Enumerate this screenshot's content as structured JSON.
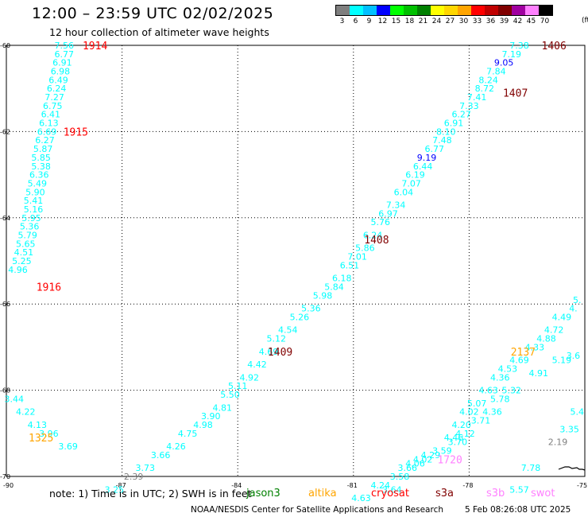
{
  "title": "12:00 – 23:59 UTC 02/02/2025",
  "subtitle": "12 hour collection of altimeter wave heights",
  "legend": {
    "unit": "(ft)",
    "bins": [
      {
        "label": "3",
        "color": "#7f7f7f"
      },
      {
        "label": "6",
        "color": "#00ffff"
      },
      {
        "label": "9",
        "color": "#00c0ff"
      },
      {
        "label": "12",
        "color": "#0000ff"
      },
      {
        "label": "15",
        "color": "#00ff00"
      },
      {
        "label": "18",
        "color": "#00c000"
      },
      {
        "label": "21",
        "color": "#008000"
      },
      {
        "label": "24",
        "color": "#ffff00"
      },
      {
        "label": "27",
        "color": "#ffd700"
      },
      {
        "label": "30",
        "color": "#ffa500"
      },
      {
        "label": "33",
        "color": "#ff0000"
      },
      {
        "label": "36",
        "color": "#c00000"
      },
      {
        "label": "39",
        "color": "#800000"
      },
      {
        "label": "42",
        "color": "#a000a0"
      },
      {
        "label": "45",
        "color": "#ff80ff"
      },
      {
        "label": "70",
        "color": "#000000"
      }
    ]
  },
  "axes": {
    "lon_ticks": [
      "-90",
      "-87",
      "-84",
      "-81",
      "-78",
      "-75"
    ],
    "lat_ticks": [
      "-60",
      "-62",
      "-64",
      "-66",
      "-68",
      "-70"
    ]
  },
  "note": "note: 1) Time is in UTC; 2) SWH is in feet",
  "satellites": [
    {
      "name": "jason3",
      "color": "#008000"
    },
    {
      "name": "altika",
      "color": "#ffa500"
    },
    {
      "name": "cryosat",
      "color": "#ff0000"
    },
    {
      "name": "s3a",
      "color": "#800000"
    },
    {
      "name": "s3b",
      "color": "#ff80ff"
    },
    {
      "name": "swot",
      "color": "#ff80ff"
    }
  ],
  "credit": "NOAA/NESDIS Center for Satellite Applications and Research",
  "timestamp": "5 Feb 08:26:08 UTC 2025",
  "track_labels": [
    {
      "text": "1914",
      "lon": -87.7,
      "lat": -60.0,
      "color": "#ff0000"
    },
    {
      "text": "1915",
      "lon": -88.2,
      "lat": -62.0,
      "color": "#ff0000"
    },
    {
      "text": "1916",
      "lon": -88.9,
      "lat": -65.6,
      "color": "#ff0000"
    },
    {
      "text": "1325",
      "lon": -89.1,
      "lat": -69.1,
      "color": "#ffa500"
    },
    {
      "text": "1406",
      "lon": -75.8,
      "lat": -60.0,
      "color": "#800000"
    },
    {
      "text": "1407",
      "lon": -76.8,
      "lat": -61.1,
      "color": "#800000"
    },
    {
      "text": "1408",
      "lon": -80.4,
      "lat": -64.5,
      "color": "#800000"
    },
    {
      "text": "1409",
      "lon": -82.9,
      "lat": -67.1,
      "color": "#800000"
    },
    {
      "text": "2137",
      "lon": -76.6,
      "lat": -67.1,
      "color": "#ffa500"
    },
    {
      "text": "1720",
      "lon": -78.5,
      "lat": -69.6,
      "color": "#ff80ff"
    }
  ],
  "wave_heights": [
    {
      "v": "7.56",
      "lon": -88.5,
      "lat": -60.0,
      "c": "#00ffff"
    },
    {
      "v": "6.77",
      "lon": -88.5,
      "lat": -60.2,
      "c": "#00ffff"
    },
    {
      "v": "6.91",
      "lon": -88.55,
      "lat": -60.4,
      "c": "#00ffff"
    },
    {
      "v": "6.98",
      "lon": -88.6,
      "lat": -60.6,
      "c": "#00ffff"
    },
    {
      "v": "6.49",
      "lon": -88.65,
      "lat": -60.8,
      "c": "#00ffff"
    },
    {
      "v": "6.24",
      "lon": -88.7,
      "lat": -61.0,
      "c": "#00ffff"
    },
    {
      "v": "7.27",
      "lon": -88.75,
      "lat": -61.2,
      "c": "#00ffff"
    },
    {
      "v": "6.75",
      "lon": -88.8,
      "lat": -61.4,
      "c": "#00ffff"
    },
    {
      "v": "6.41",
      "lon": -88.85,
      "lat": -61.6,
      "c": "#00ffff"
    },
    {
      "v": "6.13",
      "lon": -88.9,
      "lat": -61.8,
      "c": "#00ffff"
    },
    {
      "v": "6.69",
      "lon": -88.95,
      "lat": -62.0,
      "c": "#00ffff"
    },
    {
      "v": "6.27",
      "lon": -89.0,
      "lat": -62.2,
      "c": "#00ffff"
    },
    {
      "v": "5.87",
      "lon": -89.05,
      "lat": -62.4,
      "c": "#00ffff"
    },
    {
      "v": "5.85",
      "lon": -89.1,
      "lat": -62.6,
      "c": "#00ffff"
    },
    {
      "v": "5.38",
      "lon": -89.1,
      "lat": -62.8,
      "c": "#00ffff"
    },
    {
      "v": "6.36",
      "lon": -89.15,
      "lat": -63.0,
      "c": "#00ffff"
    },
    {
      "v": "5.49",
      "lon": -89.2,
      "lat": -63.2,
      "c": "#00ffff"
    },
    {
      "v": "5.90",
      "lon": -89.25,
      "lat": -63.4,
      "c": "#00ffff"
    },
    {
      "v": "5.41",
      "lon": -89.3,
      "lat": -63.6,
      "c": "#00ffff"
    },
    {
      "v": "5.16",
      "lon": -89.3,
      "lat": -63.8,
      "c": "#00ffff"
    },
    {
      "v": "5.95",
      "lon": -89.35,
      "lat": -64.0,
      "c": "#00ffff"
    },
    {
      "v": "5.36",
      "lon": -89.4,
      "lat": -64.2,
      "c": "#00ffff"
    },
    {
      "v": "5.79",
      "lon": -89.45,
      "lat": -64.4,
      "c": "#00ffff"
    },
    {
      "v": "5.65",
      "lon": -89.5,
      "lat": -64.6,
      "c": "#00ffff"
    },
    {
      "v": "4.51",
      "lon": -89.55,
      "lat": -64.8,
      "c": "#00ffff"
    },
    {
      "v": "5.25",
      "lon": -89.6,
      "lat": -65.0,
      "c": "#00ffff"
    },
    {
      "v": "4.96",
      "lon": -89.7,
      "lat": -65.2,
      "c": "#00ffff"
    },
    {
      "v": "3.44",
      "lon": -89.8,
      "lat": -68.2,
      "c": "#00ffff"
    },
    {
      "v": "4.22",
      "lon": -89.5,
      "lat": -68.5,
      "c": "#00ffff"
    },
    {
      "v": "4.13",
      "lon": -89.2,
      "lat": -68.8,
      "c": "#00ffff"
    },
    {
      "v": "3.96",
      "lon": -88.9,
      "lat": -69.0,
      "c": "#00ffff"
    },
    {
      "v": "3.69",
      "lon": -88.4,
      "lat": -69.3,
      "c": "#00ffff"
    },
    {
      "v": "7.38",
      "lon": -76.7,
      "lat": -60.0,
      "c": "#00ffff"
    },
    {
      "v": "7.19",
      "lon": -76.9,
      "lat": -60.2,
      "c": "#00ffff"
    },
    {
      "v": "9.05",
      "lon": -77.1,
      "lat": -60.4,
      "c": "#0000ff"
    },
    {
      "v": "7.84",
      "lon": -77.3,
      "lat": -60.6,
      "c": "#00ffff"
    },
    {
      "v": "8.24",
      "lon": -77.5,
      "lat": -60.8,
      "c": "#00ffff"
    },
    {
      "v": "8.72",
      "lon": -77.6,
      "lat": -61.0,
      "c": "#00ffff"
    },
    {
      "v": "7.41",
      "lon": -77.8,
      "lat": -61.2,
      "c": "#00ffff"
    },
    {
      "v": "7.33",
      "lon": -78.0,
      "lat": -61.4,
      "c": "#00ffff"
    },
    {
      "v": "6.27",
      "lon": -78.2,
      "lat": -61.6,
      "c": "#00ffff"
    },
    {
      "v": "6.91",
      "lon": -78.4,
      "lat": -61.8,
      "c": "#00ffff"
    },
    {
      "v": "8.10",
      "lon": -78.6,
      "lat": -62.0,
      "c": "#00ffff"
    },
    {
      "v": "7.48",
      "lon": -78.7,
      "lat": -62.2,
      "c": "#00ffff"
    },
    {
      "v": "6.77",
      "lon": -78.9,
      "lat": -62.4,
      "c": "#00ffff"
    },
    {
      "v": "9.19",
      "lon": -79.1,
      "lat": -62.6,
      "c": "#0000ff"
    },
    {
      "v": "6.44",
      "lon": -79.2,
      "lat": -62.8,
      "c": "#00ffff"
    },
    {
      "v": "6.19",
      "lon": -79.4,
      "lat": -63.0,
      "c": "#00ffff"
    },
    {
      "v": "7.07",
      "lon": -79.5,
      "lat": -63.2,
      "c": "#00ffff"
    },
    {
      "v": "6.04",
      "lon": -79.7,
      "lat": -63.4,
      "c": "#00ffff"
    },
    {
      "v": "7.34",
      "lon": -79.9,
      "lat": -63.7,
      "c": "#00ffff"
    },
    {
      "v": "6.97",
      "lon": -80.1,
      "lat": -63.9,
      "c": "#00ffff"
    },
    {
      "v": "5.76",
      "lon": -80.3,
      "lat": -64.1,
      "c": "#00ffff"
    },
    {
      "v": "6.24",
      "lon": -80.5,
      "lat": -64.4,
      "c": "#00ffff"
    },
    {
      "v": "5.86",
      "lon": -80.7,
      "lat": -64.7,
      "c": "#00ffff"
    },
    {
      "v": "7.01",
      "lon": -80.9,
      "lat": -64.9,
      "c": "#00ffff"
    },
    {
      "v": "6.51",
      "lon": -81.1,
      "lat": -65.1,
      "c": "#00ffff"
    },
    {
      "v": "6.18",
      "lon": -81.3,
      "lat": -65.4,
      "c": "#00ffff"
    },
    {
      "v": "5.84",
      "lon": -81.5,
      "lat": -65.6,
      "c": "#00ffff"
    },
    {
      "v": "5.98",
      "lon": -81.8,
      "lat": -65.8,
      "c": "#00ffff"
    },
    {
      "v": "5.36",
      "lon": -82.1,
      "lat": -66.1,
      "c": "#00ffff"
    },
    {
      "v": "5.26",
      "lon": -82.4,
      "lat": -66.3,
      "c": "#00ffff"
    },
    {
      "v": "4.54",
      "lon": -82.7,
      "lat": -66.6,
      "c": "#00ffff"
    },
    {
      "v": "5.12",
      "lon": -83.0,
      "lat": -66.8,
      "c": "#00ffff"
    },
    {
      "v": "4.69",
      "lon": -83.2,
      "lat": -67.1,
      "c": "#00ffff"
    },
    {
      "v": "4.42",
      "lon": -83.5,
      "lat": -67.4,
      "c": "#00ffff"
    },
    {
      "v": "4.92",
      "lon": -83.7,
      "lat": -67.7,
      "c": "#00ffff"
    },
    {
      "v": "5.11",
      "lon": -84.0,
      "lat": -67.9,
      "c": "#00ffff"
    },
    {
      "v": "5.50",
      "lon": -84.2,
      "lat": -68.1,
      "c": "#00ffff"
    },
    {
      "v": "4.81",
      "lon": -84.4,
      "lat": -68.4,
      "c": "#00ffff"
    },
    {
      "v": "3.90",
      "lon": -84.7,
      "lat": -68.6,
      "c": "#00ffff"
    },
    {
      "v": "4.98",
      "lon": -84.9,
      "lat": -68.8,
      "c": "#00ffff"
    },
    {
      "v": "4.75",
      "lon": -85.3,
      "lat": -69.0,
      "c": "#00ffff"
    },
    {
      "v": "4.26",
      "lon": -85.6,
      "lat": -69.3,
      "c": "#00ffff"
    },
    {
      "v": "3.66",
      "lon": -86.0,
      "lat": -69.5,
      "c": "#00ffff"
    },
    {
      "v": "3.73",
      "lon": -86.4,
      "lat": -69.8,
      "c": "#00ffff"
    },
    {
      "v": "2.39",
      "lon": -86.7,
      "lat": -70.0,
      "c": "#7f7f7f"
    },
    {
      "v": "3.25",
      "lon": -87.2,
      "lat": -70.3,
      "c": "#00ffff"
    },
    {
      "v": "5.",
      "lon": -75.2,
      "lat": -65.9,
      "c": "#00ffff"
    },
    {
      "v": "4.",
      "lon": -75.3,
      "lat": -66.1,
      "c": "#00ffff"
    },
    {
      "v": "4.49",
      "lon": -75.6,
      "lat": -66.3,
      "c": "#00ffff"
    },
    {
      "v": "4.72",
      "lon": -75.8,
      "lat": -66.6,
      "c": "#00ffff"
    },
    {
      "v": "4.88",
      "lon": -76.0,
      "lat": -66.8,
      "c": "#00ffff"
    },
    {
      "v": "4.33",
      "lon": -76.3,
      "lat": -67.0,
      "c": "#00ffff"
    },
    {
      "v": "3.6",
      "lon": -75.3,
      "lat": -67.2,
      "c": "#00ffff"
    },
    {
      "v": "4.69",
      "lon": -76.7,
      "lat": -67.3,
      "c": "#00ffff"
    },
    {
      "v": "5.19",
      "lon": -75.6,
      "lat": -67.3,
      "c": "#00ffff"
    },
    {
      "v": "4.53",
      "lon": -77.0,
      "lat": -67.5,
      "c": "#00ffff"
    },
    {
      "v": "4.91",
      "lon": -76.2,
      "lat": -67.6,
      "c": "#00ffff"
    },
    {
      "v": "4.36",
      "lon": -77.2,
      "lat": -67.7,
      "c": "#00ffff"
    },
    {
      "v": "4.63",
      "lon": -77.5,
      "lat": -68.0,
      "c": "#00ffff"
    },
    {
      "v": "5.32",
      "lon": -76.9,
      "lat": -68.0,
      "c": "#00ffff"
    },
    {
      "v": "5.78",
      "lon": -77.2,
      "lat": -68.2,
      "c": "#00ffff"
    },
    {
      "v": "5.07",
      "lon": -77.8,
      "lat": -68.3,
      "c": "#00ffff"
    },
    {
      "v": "4.36",
      "lon": -77.4,
      "lat": -68.5,
      "c": "#00ffff"
    },
    {
      "v": "4.02",
      "lon": -78.0,
      "lat": -68.5,
      "c": "#00ffff"
    },
    {
      "v": "3.71",
      "lon": -77.7,
      "lat": -68.7,
      "c": "#00ffff"
    },
    {
      "v": "4.20",
      "lon": -78.2,
      "lat": -68.8,
      "c": "#00ffff"
    },
    {
      "v": "4.12",
      "lon": -78.1,
      "lat": -69.0,
      "c": "#00ffff"
    },
    {
      "v": "4.46",
      "lon": -78.4,
      "lat": -69.1,
      "c": "#00ffff"
    },
    {
      "v": "3.70",
      "lon": -78.3,
      "lat": -69.2,
      "c": "#00ffff"
    },
    {
      "v": "3.59",
      "lon": -78.7,
      "lat": -69.4,
      "c": "#00ffff"
    },
    {
      "v": "4.29",
      "lon": -79.0,
      "lat": -69.5,
      "c": "#00ffff"
    },
    {
      "v": "4.02",
      "lon": -79.2,
      "lat": -69.6,
      "c": "#00ffff"
    },
    {
      "v": "4.06",
      "lon": -79.4,
      "lat": -69.7,
      "c": "#00ffff"
    },
    {
      "v": "3.66",
      "lon": -79.6,
      "lat": -69.8,
      "c": "#00ffff"
    },
    {
      "v": "3.58",
      "lon": -79.8,
      "lat": -70.0,
      "c": "#00ffff"
    },
    {
      "v": "4.24",
      "lon": -80.3,
      "lat": -70.2,
      "c": "#00ffff"
    },
    {
      "v": "3.64",
      "lon": -80.0,
      "lat": -70.3,
      "c": "#00ffff"
    },
    {
      "v": "4.63",
      "lon": -80.8,
      "lat": -70.5,
      "c": "#00ffff"
    },
    {
      "v": "5.4",
      "lon": -75.2,
      "lat": -68.5,
      "c": "#00ffff"
    },
    {
      "v": "3.35",
      "lon": -75.4,
      "lat": -68.9,
      "c": "#00ffff"
    },
    {
      "v": "2.19",
      "lon": -75.7,
      "lat": -69.2,
      "c": "#7f7f7f"
    },
    {
      "v": "7.78",
      "lon": -76.4,
      "lat": -69.8,
      "c": "#00ffff"
    },
    {
      "v": "5.57",
      "lon": -76.7,
      "lat": -70.3,
      "c": "#00ffff"
    }
  ]
}
